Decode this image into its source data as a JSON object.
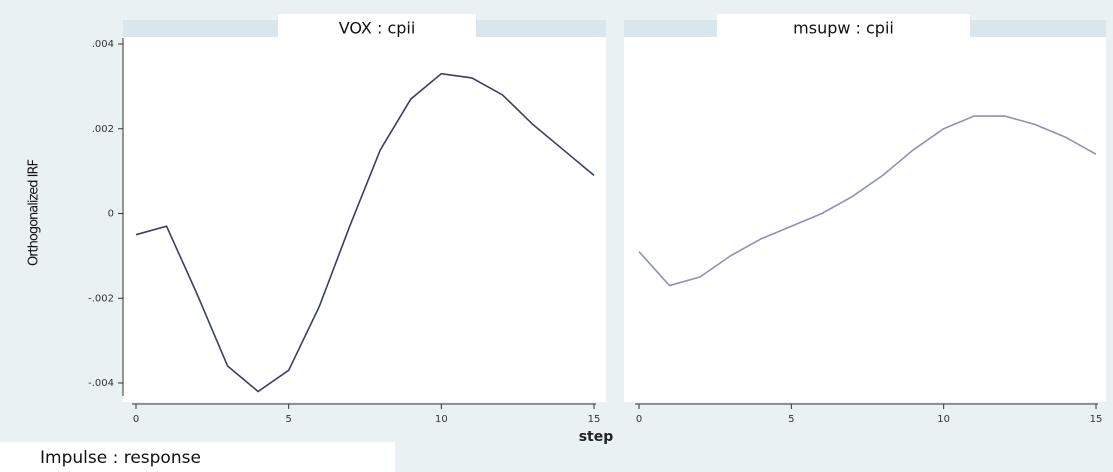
{
  "ylabel": "Orthogonalized IRF",
  "xlabel": "step",
  "note": "Impulse : response",
  "chart_data": [
    {
      "type": "line",
      "title": "VOX :  cpii",
      "x": [
        0,
        1,
        2,
        3,
        4,
        5,
        6,
        7,
        8,
        9,
        10,
        11,
        12,
        13,
        14,
        15
      ],
      "series": [
        {
          "name": "VOX : cpii",
          "color": "#3a3e6a",
          "values": [
            -0.0005,
            -0.0003,
            -0.0019,
            -0.0036,
            -0.0042,
            -0.0037,
            -0.0022,
            -0.0003,
            0.0015,
            0.0027,
            0.0033,
            0.0032,
            0.0028,
            0.0021,
            0.0015,
            0.0009
          ]
        }
      ],
      "xlim": [
        0,
        15
      ],
      "xticks": [
        0,
        5,
        10,
        15
      ],
      "ylim": [
        -0.004,
        0.004
      ],
      "yticks": [
        {
          "value": -0.004,
          "label": "-.004"
        },
        {
          "value": -0.002,
          "label": "-.002"
        },
        0,
        {
          "value": 0.002,
          "label": ".002"
        },
        {
          "value": 0.004,
          "label": ".004"
        }
      ]
    },
    {
      "type": "line",
      "title": "msupw :  cpii",
      "x": [
        0,
        1,
        2,
        3,
        4,
        5,
        6,
        7,
        8,
        9,
        10,
        11,
        12,
        13,
        14,
        15
      ],
      "series": [
        {
          "name": "msupw : cpii",
          "color": "#8e92b4",
          "values": [
            -0.0009,
            -0.0017,
            -0.0015,
            -0.001,
            -0.0006,
            -0.0003,
            0.0,
            0.0004,
            0.0009,
            0.0015,
            0.002,
            0.0023,
            0.0023,
            0.0021,
            0.0018,
            0.0014
          ]
        }
      ],
      "xlim": [
        0,
        15
      ],
      "xticks": [
        0,
        5,
        10,
        15
      ],
      "ylim": [
        -0.004,
        0.004
      ]
    }
  ]
}
